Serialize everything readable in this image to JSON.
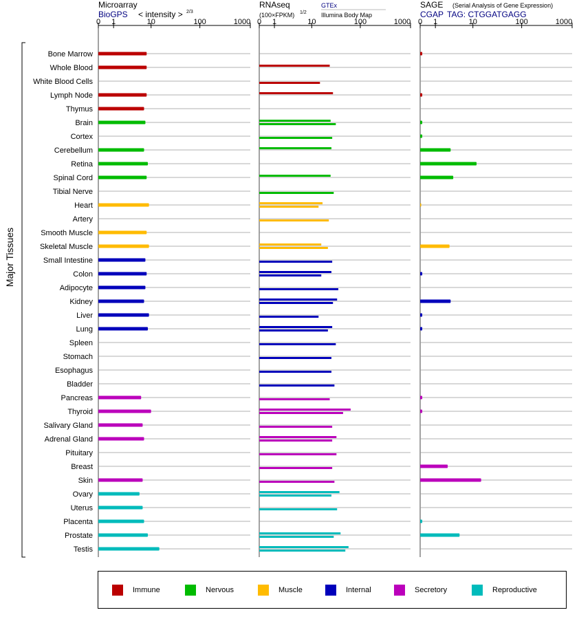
{
  "header": {
    "microarray_title": "Microarray",
    "microarray_source": "BioGPS",
    "microarray_unit": "< intensity >",
    "microarray_unit_exp": "2/3",
    "rnaseq_title": "RNAseq",
    "rnaseq_unit": "(100×FPKM)",
    "rnaseq_unit_exp": "1/2",
    "rnaseq_source_1": "GTEx",
    "rnaseq_source_2": "Illumina Body Map",
    "sage_title": "SAGE",
    "sage_subtitle": "(Serial Analysis of Gene Expression)",
    "sage_source": "CGAP",
    "sage_tag": "TAG: CTGGATGAGG",
    "side_label": "Major Tissues"
  },
  "colors": {
    "Immune": "#bb0000",
    "Nervous": "#00bb00",
    "Muscle": "#ffbb00",
    "Internal": "#0000bb",
    "Secretory": "#bb00bb",
    "Reproductive": "#00bbbb"
  },
  "legend": [
    {
      "name": "Immune",
      "color": "#bb0000"
    },
    {
      "name": "Nervous",
      "color": "#00bb00"
    },
    {
      "name": "Muscle",
      "color": "#ffbb00"
    },
    {
      "name": "Internal",
      "color": "#0000bb"
    },
    {
      "name": "Secretory",
      "color": "#bb00bb"
    },
    {
      "name": "Reproductive",
      "color": "#00bbbb"
    }
  ],
  "chart_data": {
    "type": "bar",
    "orientation": "horizontal",
    "axis_ticks": [
      "0",
      "1",
      "10",
      "100",
      "1000"
    ],
    "axis_range": [
      0,
      1000
    ],
    "categories": [
      "Bone Marrow",
      "Whole Blood",
      "White Blood Cells",
      "Lymph Node",
      "Thymus",
      "Brain",
      "Cortex",
      "Cerebellum",
      "Retina",
      "Spinal Cord",
      "Tibial Nerve",
      "Heart",
      "Artery",
      "Smooth Muscle",
      "Skeletal Muscle",
      "Small Intestine",
      "Colon",
      "Adipocyte",
      "Kidney",
      "Liver",
      "Lung",
      "Spleen",
      "Stomach",
      "Esophagus",
      "Bladder",
      "Pancreas",
      "Thyroid",
      "Salivary Gland",
      "Adrenal Gland",
      "Pituitary",
      "Breast",
      "Skin",
      "Ovary",
      "Uterus",
      "Placenta",
      "Prostate",
      "Testis"
    ],
    "groups": [
      "Immune",
      "Immune",
      "Immune",
      "Immune",
      "Immune",
      "Nervous",
      "Nervous",
      "Nervous",
      "Nervous",
      "Nervous",
      "Nervous",
      "Muscle",
      "Muscle",
      "Muscle",
      "Muscle",
      "Internal",
      "Internal",
      "Internal",
      "Internal",
      "Internal",
      "Internal",
      "Internal",
      "Internal",
      "Internal",
      "Internal",
      "Secretory",
      "Secretory",
      "Secretory",
      "Secretory",
      "Secretory",
      "Secretory",
      "Secretory",
      "Reproductive",
      "Reproductive",
      "Reproductive",
      "Reproductive",
      "Reproductive"
    ],
    "series": [
      {
        "name": "Microarray",
        "values": [
          8,
          8,
          null,
          8,
          7,
          7.5,
          null,
          7,
          8.5,
          8,
          null,
          9,
          null,
          8,
          9,
          7.5,
          8,
          7.5,
          7,
          9,
          8.5,
          null,
          null,
          null,
          null,
          6,
          10,
          6.5,
          7,
          null,
          null,
          6.5,
          5.5,
          6.5,
          7,
          8.5,
          15
        ]
      },
      {
        "name": "RNAseq GTEx",
        "values": [
          null,
          24,
          null,
          28,
          null,
          25,
          null,
          26,
          null,
          25,
          null,
          17,
          null,
          null,
          16,
          null,
          26,
          null,
          34,
          null,
          27,
          null,
          null,
          null,
          null,
          null,
          64,
          null,
          33,
          null,
          null,
          null,
          38,
          null,
          null,
          40,
          58
        ]
      },
      {
        "name": "RNAseq Illumina Body Map",
        "values": [
          null,
          null,
          15,
          null,
          null,
          32,
          27,
          null,
          null,
          null,
          29,
          14,
          23,
          null,
          22,
          27,
          16,
          36,
          28,
          14,
          22,
          32,
          26,
          26,
          30,
          24,
          45,
          27,
          27,
          33,
          27,
          30,
          26,
          34,
          null,
          29,
          50
        ]
      },
      {
        "name": "SAGE",
        "values": [
          0.1,
          null,
          null,
          0.1,
          null,
          0.1,
          0.1,
          3,
          12,
          3.5,
          null,
          0.05,
          null,
          null,
          2.8,
          null,
          0.1,
          null,
          3,
          0.1,
          0.1,
          null,
          null,
          null,
          null,
          0.1,
          0.1,
          null,
          null,
          null,
          2.5,
          15,
          null,
          null,
          0.1,
          5,
          null
        ]
      }
    ]
  }
}
